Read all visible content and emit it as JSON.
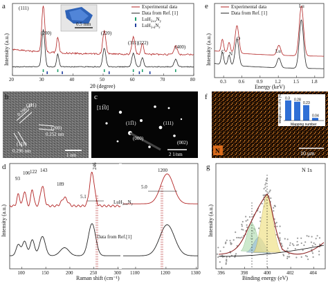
{
  "panel_a": {
    "letter": "a",
    "ylabel": "Intensity (a.u.)",
    "xlabel": "2θ (degree)",
    "xticks": [
      "20",
      "30",
      "40",
      "50",
      "60",
      "70",
      "80"
    ],
    "peaks": [
      "(111)",
      "(200)",
      "(220)",
      "(311)",
      "(222)",
      "(400)"
    ],
    "inset_scale": "0.5 mm",
    "legend": [
      "Experimental data",
      "Data from Ref. [1]"
    ],
    "phase1_main": "LuH",
    "phase1_sub": "2±x",
    "phase1_main2": "N",
    "phase1_sub2": "y",
    "phase2_main": "LuH",
    "phase2_sub": "3-δ",
    "phase2_main2": "N",
    "phase2_sub2": "ε"
  },
  "panel_e": {
    "letter": "e",
    "ylabel": "Intensity (a.u.)",
    "xlabel": "Energy (keV)",
    "xticks": [
      "0.3",
      "0.6",
      "0.9",
      "1.2",
      "1.5",
      "1.8"
    ],
    "legend": [
      "Experimental data",
      "Data from Ref. [1]"
    ],
    "labels": [
      "C",
      "N",
      "O",
      "Lu",
      "Lu"
    ]
  },
  "panel_b": {
    "letter": "b",
    "ann1_hkl": "(111)",
    "ann1_d": "0.296 nm",
    "ann2_hkl": "(200)",
    "ann2_d": "0.252 nm",
    "ann3_hkl": "(111)",
    "ann3_d": "0.296 nm",
    "scale": "1 nm"
  },
  "panel_c": {
    "letter": "c",
    "zone": "[11̅0]",
    "spots": [
      "(11̅1)",
      "(111)",
      "(000)",
      "(002)"
    ],
    "scale": "2 1/nm"
  },
  "panel_f": {
    "letter": "f",
    "element": "N",
    "scale": "10 μm",
    "inset_ylabel": "Weight conc. of N (%)",
    "inset_xlabel": "Mapping number",
    "inset_values": [
      0.3,
      0.28,
      0.23,
      0.04
    ],
    "inset_labels": [
      "0.3",
      "0.28",
      "0.23",
      "0.04"
    ],
    "inset_yticks": [
      "0.0",
      "0.1",
      "0.2",
      "0.3"
    ]
  },
  "panel_d": {
    "letter": "d",
    "ylabel": "Intensity (a.u.)",
    "xlabel": "Raman shift (cm⁻¹)",
    "xticks_left": [
      "100",
      "150",
      "200",
      "250",
      "300"
    ],
    "xticks_right": [
      "1100",
      "1200",
      "1300"
    ],
    "peaks": [
      "93",
      "106",
      "122",
      "143",
      "189",
      "246",
      "1200"
    ],
    "fwhm_left": "5.1",
    "fwhm_right": "5.0",
    "series_red_main": "LuH",
    "series_red_sub": "2±x",
    "series_red_main2": "N",
    "series_red_sub2": "y",
    "series_black": "Data from Ref.[1]"
  },
  "panel_g": {
    "letter": "g",
    "title": "N 1s",
    "ylabel": "Intensity (a.u.)",
    "xlabel": "Binding energy (eV)",
    "xticks": [
      "396",
      "398",
      "400",
      "402",
      "404"
    ]
  }
}
